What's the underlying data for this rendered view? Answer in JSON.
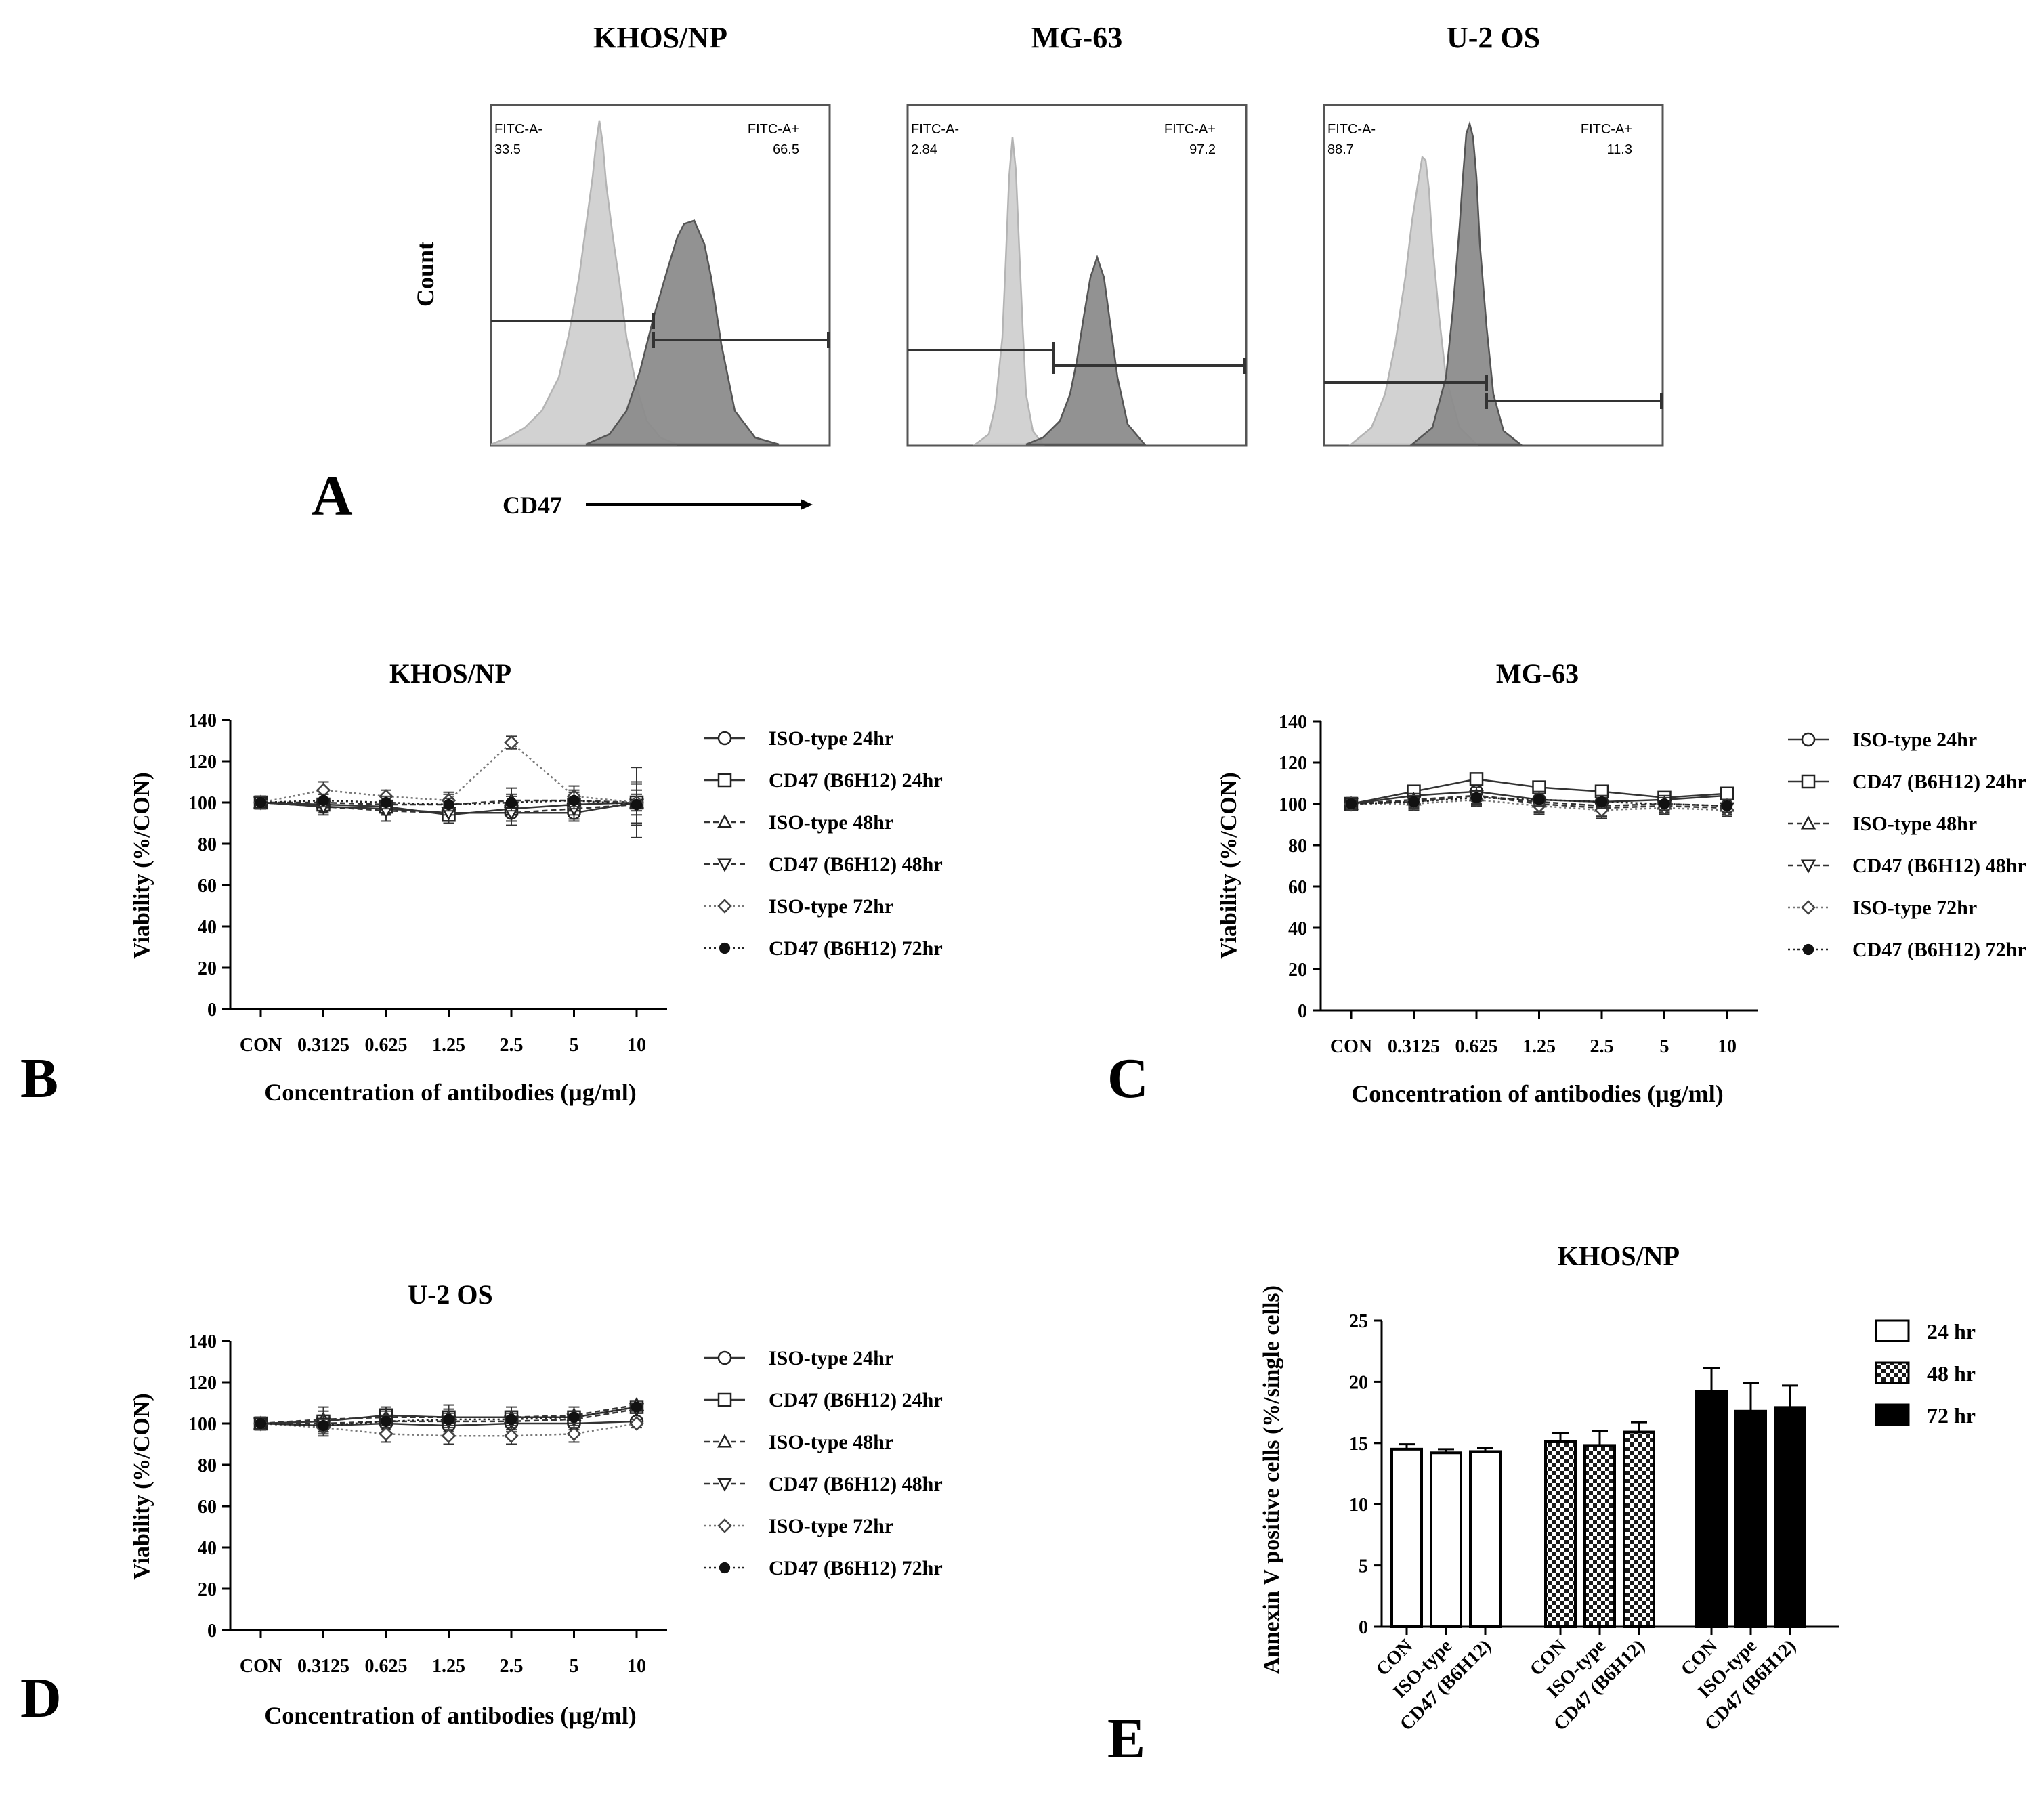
{
  "panel_letters": [
    "A",
    "B",
    "C",
    "D",
    "E"
  ],
  "series_labels": [
    "ISO-type 24hr",
    "CD47 (B6H12) 24hr",
    "ISO-type 48hr",
    "CD47 (B6H12) 48hr",
    "ISO-type 72hr",
    "CD47 (B6H12) 72hr"
  ],
  "panel_a": {
    "y_label": "Count",
    "x_label": "CD47",
    "gate_neg_label": "FITC-A-",
    "gate_pos_label": "FITC-A+"
  },
  "chart_data": [
    {
      "type": "area",
      "title": "KHOS/NP",
      "xlabel": "CD47",
      "ylabel": "Count",
      "gates": [
        {
          "label": "FITC-A-",
          "value": "33.5"
        },
        {
          "label": "FITC-A+",
          "value": "66.5"
        }
      ],
      "series": [
        {
          "color": "#d2d2d2",
          "x": [
            0,
            0.05,
            0.1,
            0.15,
            0.2,
            0.23,
            0.26,
            0.28,
            0.3,
            0.31,
            0.32,
            0.33,
            0.34,
            0.36,
            0.38,
            0.4,
            0.43,
            0.46,
            0.5,
            0.55
          ],
          "y": [
            0,
            0.02,
            0.05,
            0.1,
            0.2,
            0.33,
            0.5,
            0.65,
            0.8,
            0.9,
            0.97,
            0.9,
            0.78,
            0.62,
            0.48,
            0.32,
            0.17,
            0.07,
            0.02,
            0
          ]
        },
        {
          "color": "#8c8c8c",
          "x": [
            0.28,
            0.35,
            0.4,
            0.44,
            0.48,
            0.52,
            0.55,
            0.57,
            0.6,
            0.63,
            0.65,
            0.68,
            0.72,
            0.78,
            0.85
          ],
          "y": [
            0,
            0.03,
            0.1,
            0.22,
            0.38,
            0.52,
            0.62,
            0.66,
            0.67,
            0.6,
            0.5,
            0.3,
            0.1,
            0.02,
            0
          ]
        }
      ]
    },
    {
      "type": "area",
      "title": "MG-63",
      "xlabel": "CD47",
      "ylabel": "Count",
      "gates": [
        {
          "label": "FITC-A-",
          "value": "2.84"
        },
        {
          "label": "FITC-A+",
          "value": "97.2"
        }
      ],
      "series": [
        {
          "color": "#d2d2d2",
          "x": [
            0.2,
            0.24,
            0.26,
            0.28,
            0.29,
            0.3,
            0.31,
            0.32,
            0.33,
            0.34,
            0.35,
            0.37,
            0.4
          ],
          "y": [
            0,
            0.03,
            0.12,
            0.32,
            0.55,
            0.8,
            0.92,
            0.82,
            0.58,
            0.35,
            0.15,
            0.04,
            0
          ]
        },
        {
          "color": "#8c8c8c",
          "x": [
            0.35,
            0.4,
            0.45,
            0.48,
            0.5,
            0.52,
            0.54,
            0.56,
            0.58,
            0.6,
            0.62,
            0.65,
            0.7
          ],
          "y": [
            0,
            0.02,
            0.07,
            0.15,
            0.25,
            0.38,
            0.5,
            0.56,
            0.5,
            0.35,
            0.2,
            0.06,
            0
          ]
        }
      ]
    },
    {
      "type": "area",
      "title": "U-2 OS",
      "xlabel": "CD47",
      "ylabel": "Count",
      "gates": [
        {
          "label": "FITC-A-",
          "value": "88.7"
        },
        {
          "label": "FITC-A+",
          "value": "11.3"
        }
      ],
      "series": [
        {
          "color": "#d2d2d2",
          "x": [
            0.08,
            0.14,
            0.18,
            0.21,
            0.24,
            0.26,
            0.28,
            0.29,
            0.3,
            0.31,
            0.32,
            0.34,
            0.36,
            0.4,
            0.45
          ],
          "y": [
            0,
            0.05,
            0.15,
            0.3,
            0.5,
            0.67,
            0.8,
            0.86,
            0.85,
            0.76,
            0.6,
            0.38,
            0.2,
            0.05,
            0
          ]
        },
        {
          "color": "#8c8c8c",
          "x": [
            0.26,
            0.32,
            0.36,
            0.38,
            0.4,
            0.41,
            0.42,
            0.43,
            0.44,
            0.45,
            0.46,
            0.48,
            0.5,
            0.53,
            0.58
          ],
          "y": [
            0,
            0.05,
            0.2,
            0.4,
            0.65,
            0.8,
            0.93,
            0.96,
            0.92,
            0.8,
            0.6,
            0.35,
            0.15,
            0.04,
            0
          ]
        }
      ]
    },
    {
      "type": "line",
      "title": "KHOS/NP",
      "xlabel": "Concentration of antibodies (μg/ml)",
      "ylabel": "Viability (%/CON)",
      "categories": [
        "CON",
        "0.3125",
        "0.625",
        "1.25",
        "2.5",
        "5",
        "10"
      ],
      "ylim": [
        0,
        140
      ],
      "yticks": [
        0,
        20,
        40,
        60,
        80,
        100,
        120,
        140
      ],
      "series": [
        {
          "name": "ISO-type 24hr",
          "values": [
            100,
            98,
            97,
            95,
            95,
            95,
            100
          ],
          "errors": [
            3,
            3,
            3,
            3,
            4,
            4,
            4
          ]
        },
        {
          "name": "CD47 (B6H12) 24hr",
          "values": [
            100,
            99,
            98,
            94,
            97,
            99,
            100
          ],
          "errors": [
            3,
            3,
            4,
            4,
            6,
            5,
            6
          ]
        },
        {
          "name": "ISO-type 48hr",
          "values": [
            100,
            100,
            99,
            99,
            101,
            101,
            100
          ],
          "errors": [
            3,
            4,
            5,
            5,
            6,
            5,
            10
          ]
        },
        {
          "name": "CD47 (B6H12) 48hr",
          "values": [
            100,
            98,
            96,
            95,
            95,
            97,
            99
          ],
          "errors": [
            3,
            4,
            5,
            5,
            6,
            5,
            10
          ]
        },
        {
          "name": "ISO-type 72hr",
          "values": [
            100,
            106,
            103,
            101,
            129,
            103,
            100
          ],
          "errors": [
            3,
            4,
            3,
            4,
            3,
            5,
            17
          ]
        },
        {
          "name": "CD47 (B6H12) 72hr",
          "values": [
            100,
            101,
            100,
            99,
            100,
            101,
            99
          ],
          "errors": [
            3,
            3,
            3,
            3,
            4,
            4,
            10
          ]
        }
      ]
    },
    {
      "type": "line",
      "title": "MG-63",
      "xlabel": "Concentration of antibodies (μg/ml)",
      "ylabel": "Viability (%/CON)",
      "categories": [
        "CON",
        "0.3125",
        "0.625",
        "1.25",
        "2.5",
        "5",
        "10"
      ],
      "ylim": [
        0,
        140
      ],
      "yticks": [
        0,
        20,
        40,
        60,
        80,
        100,
        120,
        140
      ],
      "series": [
        {
          "name": "ISO-type 24hr",
          "values": [
            100,
            104,
            106,
            102,
            101,
            102,
            104
          ],
          "errors": [
            2,
            2,
            2,
            2,
            2,
            2,
            2
          ]
        },
        {
          "name": "CD47 (B6H12) 24hr",
          "values": [
            100,
            106,
            112,
            108,
            106,
            103,
            105
          ],
          "errors": [
            2,
            2,
            2,
            2,
            2,
            2,
            2
          ]
        },
        {
          "name": "ISO-type 48hr",
          "values": [
            100,
            102,
            104,
            101,
            99,
            100,
            99
          ],
          "errors": [
            3,
            3,
            4,
            5,
            5,
            4,
            3
          ]
        },
        {
          "name": "CD47 (B6H12) 48hr",
          "values": [
            100,
            101,
            104,
            100,
            98,
            99,
            98
          ],
          "errors": [
            3,
            3,
            4,
            5,
            5,
            4,
            3
          ]
        },
        {
          "name": "ISO-type 72hr",
          "values": [
            100,
            100,
            102,
            99,
            97,
            98,
            97
          ],
          "errors": [
            2,
            3,
            3,
            3,
            3,
            3,
            3
          ]
        },
        {
          "name": "CD47 (B6H12) 72hr",
          "values": [
            100,
            101,
            103,
            102,
            101,
            100,
            99
          ],
          "errors": [
            2,
            3,
            3,
            3,
            3,
            3,
            3
          ]
        }
      ]
    },
    {
      "type": "line",
      "title": "U-2 OS",
      "xlabel": "Concentration of antibodies (μg/ml)",
      "ylabel": "Viability (%/CON)",
      "categories": [
        "CON",
        "0.3125",
        "0.625",
        "1.25",
        "2.5",
        "5",
        "10"
      ],
      "ylim": [
        0,
        140
      ],
      "yticks": [
        0,
        20,
        40,
        60,
        80,
        100,
        120,
        140
      ],
      "series": [
        {
          "name": "ISO-type 24hr",
          "values": [
            100,
            99,
            100,
            99,
            100,
            100,
            101
          ],
          "errors": [
            3,
            3,
            3,
            3,
            3,
            3,
            2
          ]
        },
        {
          "name": "CD47 (B6H12) 24hr",
          "values": [
            100,
            101,
            104,
            103,
            103,
            103,
            108
          ],
          "errors": [
            3,
            3,
            3,
            3,
            3,
            3,
            2
          ]
        },
        {
          "name": "ISO-type 48hr",
          "values": [
            100,
            102,
            103,
            103,
            103,
            104,
            109
          ],
          "errors": [
            3,
            6,
            5,
            6,
            5,
            4,
            2
          ]
        },
        {
          "name": "CD47 (B6H12) 48hr",
          "values": [
            100,
            100,
            101,
            101,
            101,
            102,
            107
          ],
          "errors": [
            3,
            6,
            5,
            6,
            5,
            4,
            2
          ]
        },
        {
          "name": "ISO-type 72hr",
          "values": [
            100,
            98,
            95,
            94,
            94,
            95,
            100
          ],
          "errors": [
            3,
            3,
            4,
            4,
            4,
            4,
            2
          ]
        },
        {
          "name": "CD47 (B6H12) 72hr",
          "values": [
            100,
            99,
            101,
            102,
            102,
            103,
            108
          ],
          "errors": [
            3,
            3,
            3,
            3,
            3,
            3,
            2
          ]
        }
      ]
    },
    {
      "type": "bar",
      "title": "KHOS/NP",
      "xlabel": "",
      "ylabel": "Annexin V positive cells (%/single cells)",
      "categories": [
        "CON",
        "ISO-type",
        "CD47 (B6H12)"
      ],
      "ylim": [
        0,
        25
      ],
      "yticks": [
        0,
        5,
        10,
        15,
        20,
        25
      ],
      "legend": "right",
      "series": [
        {
          "name": "24 hr",
          "fill": "white",
          "values": [
            14.5,
            14.2,
            14.3
          ],
          "errors": [
            0.4,
            0.3,
            0.3
          ]
        },
        {
          "name": "48 hr",
          "fill": "checker",
          "values": [
            15.1,
            14.8,
            15.9
          ],
          "errors": [
            0.7,
            1.2,
            0.8
          ]
        },
        {
          "name": "72 hr",
          "fill": "black",
          "values": [
            19.2,
            17.6,
            17.9
          ],
          "errors": [
            1.9,
            2.3,
            1.8
          ]
        }
      ]
    }
  ]
}
